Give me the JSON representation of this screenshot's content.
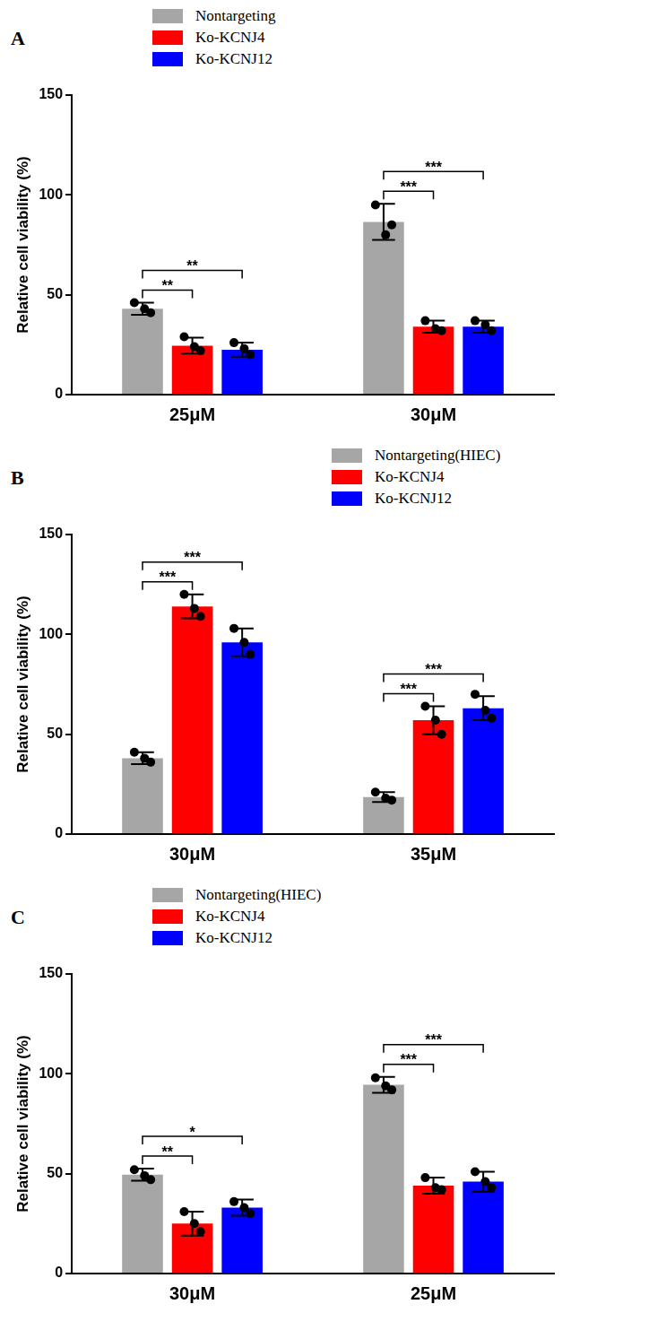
{
  "chart_data": [
    {
      "type": "bar",
      "title": "A",
      "y_label": "Relative cell viability (%)",
      "categories": [
        "25μM",
        "30μM"
      ],
      "series": [
        {
          "name": "Nontargeting",
          "color": "#a6a6a6",
          "values": [
            43,
            86.5
          ],
          "errors": [
            3,
            9
          ],
          "points": [
            [
              46,
              43,
              41
            ],
            [
              95,
              80,
              85
            ]
          ]
        },
        {
          "name": "Ko-KCNJ4",
          "color": "#ff0000",
          "values": [
            24.5,
            34
          ],
          "errors": [
            4,
            3
          ],
          "points": [
            [
              29,
              24,
              22
            ],
            [
              37,
              33,
              32
            ]
          ]
        },
        {
          "name": "Ko-KCNJ12",
          "color": "#0000ff",
          "values": [
            22.5,
            34
          ],
          "errors": [
            3.5,
            3
          ],
          "points": [
            [
              26,
              23,
              20
            ],
            [
              37,
              35,
              32
            ]
          ]
        }
      ],
      "ylim": [
        0,
        150
      ],
      "yticks": [
        0,
        50,
        100,
        150
      ],
      "grid": false,
      "legend": "top left",
      "significance": [
        {
          "category": "25μM",
          "from": "Nontargeting",
          "to": "Ko-KCNJ4",
          "label": "**"
        },
        {
          "category": "25μM",
          "from": "Nontargeting",
          "to": "Ko-KCNJ12",
          "label": "**"
        },
        {
          "category": "30μM",
          "from": "Nontargeting",
          "to": "Ko-KCNJ4",
          "label": "***"
        },
        {
          "category": "30μM",
          "from": "Nontargeting",
          "to": "Ko-KCNJ12",
          "label": "***"
        }
      ]
    },
    {
      "type": "bar",
      "title": "B",
      "y_label": "Relative cell viability (%)",
      "categories": [
        "30μM",
        "35μM"
      ],
      "series": [
        {
          "name": "Nontargeting(HIEC)",
          "color": "#a6a6a6",
          "values": [
            38,
            18.5
          ],
          "errors": [
            3,
            2.5
          ],
          "points": [
            [
              41,
              38,
              36
            ],
            [
              21,
              18,
              17
            ]
          ]
        },
        {
          "name": "Ko-KCNJ4",
          "color": "#ff0000",
          "values": [
            114,
            57
          ],
          "errors": [
            6,
            7
          ],
          "points": [
            [
              120,
              113,
              109
            ],
            [
              64,
              57,
              50
            ]
          ]
        },
        {
          "name": "Ko-KCNJ12",
          "color": "#0000ff",
          "values": [
            96,
            63
          ],
          "errors": [
            7,
            6
          ],
          "points": [
            [
              103,
              96,
              90
            ],
            [
              70,
              62,
              58
            ]
          ]
        }
      ],
      "ylim": [
        0,
        150
      ],
      "yticks": [
        0,
        50,
        100,
        150
      ],
      "grid": false,
      "legend": "top right",
      "significance": [
        {
          "category": "30μM",
          "from": "Nontargeting(HIEC)",
          "to": "Ko-KCNJ4",
          "label": "***"
        },
        {
          "category": "30μM",
          "from": "Nontargeting(HIEC)",
          "to": "Ko-KCNJ12",
          "label": "***"
        },
        {
          "category": "35μM",
          "from": "Nontargeting(HIEC)",
          "to": "Ko-KCNJ4",
          "label": "***"
        },
        {
          "category": "35μM",
          "from": "Nontargeting(HIEC)",
          "to": "Ko-KCNJ12",
          "label": "***"
        }
      ]
    },
    {
      "type": "bar",
      "title": "C",
      "y_label": "Relative cell viability (%)",
      "categories": [
        "30μM",
        "25μM"
      ],
      "series": [
        {
          "name": "Nontargeting(HIEC)",
          "color": "#a6a6a6",
          "values": [
            49.5,
            94.5
          ],
          "errors": [
            3,
            4
          ],
          "points": [
            [
              52,
              49,
              47
            ],
            [
              98,
              94,
              92
            ]
          ]
        },
        {
          "name": "Ko-KCNJ4",
          "color": "#ff0000",
          "values": [
            25,
            44
          ],
          "errors": [
            6,
            4
          ],
          "points": [
            [
              31,
              25,
              21
            ],
            [
              48,
              43,
              42
            ]
          ]
        },
        {
          "name": "Ko-KCNJ12",
          "color": "#0000ff",
          "values": [
            33,
            46
          ],
          "errors": [
            4,
            5
          ],
          "points": [
            [
              36,
              33,
              30
            ],
            [
              51,
              46,
              43
            ]
          ]
        }
      ],
      "ylim": [
        0,
        150
      ],
      "yticks": [
        0,
        50,
        100,
        150
      ],
      "grid": false,
      "legend": "top left",
      "significance": [
        {
          "category": "30μM",
          "from": "Nontargeting(HIEC)",
          "to": "Ko-KCNJ4",
          "label": "**"
        },
        {
          "category": "30μM",
          "from": "Nontargeting(HIEC)",
          "to": "Ko-KCNJ12",
          "label": "*"
        },
        {
          "category": "25μM",
          "from": "Nontargeting(HIEC)",
          "to": "Ko-KCNJ4",
          "label": "***"
        },
        {
          "category": "25μM",
          "from": "Nontargeting(HIEC)",
          "to": "Ko-KCNJ12",
          "label": "***"
        }
      ]
    }
  ]
}
